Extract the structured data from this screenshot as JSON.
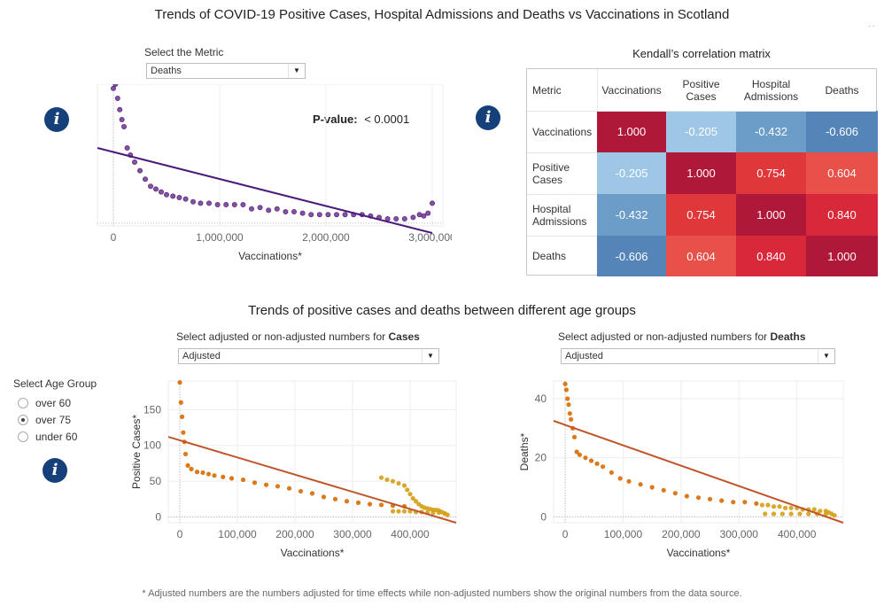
{
  "page": {
    "title": "Trends of COVID-19 Positive Cases, Hospital Admissions and Deaths  vs Vaccinations in Scotland",
    "more_icon": "more-options-icon",
    "footnote": "* Adjusted numbers are the numbers adjusted for time effects while non-adjusted numbers show the original numbers from the data source."
  },
  "metric_control": {
    "label": "Select the Metric",
    "selected": "Deaths",
    "options": [
      "Deaths"
    ]
  },
  "pvalue": {
    "label": "P-value:",
    "value": "< 0.0001"
  },
  "correlation": {
    "title": "Kendall’s correlation matrix",
    "corner": "Metric",
    "headers": [
      "Vaccinations",
      "Positive\nCases",
      "Hospital\nAdmissions",
      "Deaths"
    ],
    "rows": [
      {
        "label": "Vaccinations",
        "values": [
          "1.000",
          "-0.205",
          "-0.432",
          "-0.606"
        ]
      },
      {
        "label": "Positive\nCases",
        "values": [
          "-0.205",
          "1.000",
          "0.754",
          "0.604"
        ]
      },
      {
        "label": "Hospital\nAdmissions",
        "values": [
          "-0.432",
          "0.754",
          "1.000",
          "0.840"
        ]
      },
      {
        "label": "Deaths",
        "values": [
          "-0.606",
          "0.604",
          "0.840",
          "1.000"
        ]
      }
    ],
    "colors": {
      "1.000": "#b0183a",
      "-0.205": "#9ec7e6",
      "-0.432": "#6c9cc8",
      "-0.606": "#5585b8",
      "0.754": "#e0373a",
      "0.604": "#e8504a",
      "0.840": "#d8283a"
    }
  },
  "age_section": {
    "title": "Trends of positive cases and deaths between different age groups",
    "cases_label_prefix": "Select adjusted or non-adjusted numbers for ",
    "cases_label_bold": "Cases",
    "cases_selected": "Adjusted",
    "deaths_label_prefix": "Select adjusted or non-adjusted numbers for ",
    "deaths_label_bold": "Deaths",
    "deaths_selected": "Adjusted",
    "age_group_label": "Select Age Group",
    "age_groups": [
      "over 60",
      "over 75",
      "under 60"
    ],
    "age_selected": "over 75"
  },
  "info_icon": "info-icon",
  "chart_data": [
    {
      "type": "scatter",
      "title": "",
      "xlabel": "Vaccinations*",
      "ylabel": "",
      "xlim": [
        -150000,
        3100000
      ],
      "ylim": [
        0,
        1
      ],
      "x_ticks": [
        "0",
        "1,000,000",
        "2,000,000",
        "3,000,000"
      ],
      "x_tick_values": [
        0,
        1000000,
        2000000,
        3000000
      ],
      "y_ticks": [],
      "point_color": "#7b3f98",
      "trend_color": "#4b1a7a",
      "trend": {
        "x": [
          -150000,
          3000000
        ],
        "y": [
          0.55,
          -0.05
        ]
      },
      "series": [
        {
          "x": [
            0,
            20000,
            40000,
            60000,
            80000,
            100000,
            130000,
            160000,
            200000,
            250000,
            300000,
            350000,
            400000,
            450000,
            500000,
            560000,
            620000,
            680000,
            750000,
            820000,
            900000,
            980000,
            1060000,
            1140000,
            1220000,
            1300000,
            1380000,
            1460000,
            1540000,
            1620000,
            1700000,
            1780000,
            1860000,
            1940000,
            2020000,
            2100000,
            2180000,
            2260000,
            2340000,
            2420000,
            2500000,
            2580000,
            2660000,
            2740000,
            2820000,
            2880000,
            2920000,
            2960000,
            3000000
          ],
          "y": [
            0.97,
            1.0,
            0.9,
            0.82,
            0.75,
            0.7,
            0.55,
            0.5,
            0.45,
            0.39,
            0.33,
            0.28,
            0.26,
            0.24,
            0.22,
            0.21,
            0.2,
            0.19,
            0.17,
            0.16,
            0.16,
            0.15,
            0.15,
            0.15,
            0.15,
            0.12,
            0.13,
            0.11,
            0.12,
            0.1,
            0.1,
            0.09,
            0.08,
            0.08,
            0.08,
            0.08,
            0.08,
            0.08,
            0.08,
            0.07,
            0.06,
            0.05,
            0.05,
            0.05,
            0.06,
            0.08,
            0.07,
            0.09,
            0.16
          ]
        }
      ]
    },
    {
      "type": "scatter",
      "title": "",
      "xlabel": "Vaccinations*",
      "ylabel": "Positive Cases*",
      "xlim": [
        -20000,
        480000
      ],
      "ylim": [
        -8,
        190
      ],
      "x_ticks": [
        "0",
        "100,000",
        "200,000",
        "300,000",
        "400,000"
      ],
      "x_tick_values": [
        0,
        100000,
        200000,
        300000,
        400000
      ],
      "y_ticks": [
        "0",
        "50",
        "100",
        "150"
      ],
      "y_tick_values": [
        0,
        50,
        100,
        150
      ],
      "point_colors": [
        "#d86a00",
        "#d4a017"
      ],
      "trend_color": "#c0552a",
      "trend": {
        "x": [
          -20000,
          480000
        ],
        "y": [
          112,
          -8
        ]
      },
      "series": [
        {
          "x": [
            0,
            2000,
            4000,
            6000,
            8000,
            10000,
            14000,
            20000,
            30000,
            40000,
            50000,
            60000,
            75000,
            90000,
            110000,
            130000,
            150000,
            170000,
            190000,
            210000,
            230000,
            250000,
            270000,
            290000,
            310000,
            330000,
            350000,
            370000,
            390000
          ],
          "y": [
            188,
            160,
            140,
            118,
            105,
            88,
            72,
            67,
            63,
            62,
            60,
            58,
            56,
            54,
            52,
            48,
            45,
            43,
            40,
            36,
            33,
            28,
            25,
            22,
            20,
            18,
            17,
            16,
            15
          ]
        },
        {
          "x": [
            350000,
            360000,
            370000,
            380000,
            390000,
            395000,
            400000,
            405000,
            410000,
            415000,
            420000,
            425000,
            430000,
            435000,
            440000,
            445000,
            450000,
            455000,
            460000,
            465000,
            370000,
            380000,
            390000,
            400000,
            410000,
            420000,
            430000,
            440000,
            450000,
            460000
          ],
          "y": [
            55,
            52,
            50,
            47,
            44,
            38,
            32,
            26,
            22,
            18,
            15,
            13,
            12,
            11,
            10,
            10,
            9,
            7,
            5,
            3,
            8,
            8,
            8,
            8,
            7,
            7,
            6,
            6,
            6,
            5
          ]
        }
      ]
    },
    {
      "type": "scatter",
      "title": "",
      "xlabel": "Vaccinations*",
      "ylabel": "Deaths*",
      "xlim": [
        -20000,
        480000
      ],
      "ylim": [
        -2,
        46
      ],
      "x_ticks": [
        "0",
        "100,000",
        "200,000",
        "300,000",
        "400,000"
      ],
      "x_tick_values": [
        0,
        100000,
        200000,
        300000,
        400000
      ],
      "y_ticks": [
        "0",
        "20",
        "40"
      ],
      "y_tick_values": [
        0,
        20,
        40
      ],
      "point_colors": [
        "#d86a00",
        "#d4a017"
      ],
      "trend_color": "#c0552a",
      "trend": {
        "x": [
          -20000,
          480000
        ],
        "y": [
          32.5,
          -2
        ]
      },
      "series": [
        {
          "x": [
            0,
            2000,
            4000,
            6000,
            8000,
            10000,
            13000,
            16000,
            20000,
            25000,
            35000,
            45000,
            55000,
            65000,
            80000,
            95000,
            110000,
            130000,
            150000,
            170000,
            190000,
            210000,
            230000,
            250000,
            270000,
            290000,
            310000,
            330000
          ],
          "y": [
            45,
            43,
            40,
            38,
            35,
            33,
            30,
            27,
            22,
            21,
            20,
            19,
            18,
            17,
            15,
            13,
            12,
            11,
            10,
            9,
            8,
            7,
            6.5,
            6,
            5.5,
            5,
            5,
            4.5
          ]
        },
        {
          "x": [
            340000,
            350000,
            360000,
            370000,
            380000,
            390000,
            400000,
            410000,
            420000,
            430000,
            440000,
            450000,
            455000,
            460000,
            465000,
            345000,
            360000,
            375000,
            390000,
            405000,
            420000,
            435000,
            450000
          ],
          "y": [
            4,
            4,
            3.5,
            3.5,
            3,
            3,
            3,
            2.5,
            2.5,
            2.5,
            2,
            2,
            1.5,
            1,
            0.5,
            1,
            1,
            1,
            1,
            1,
            1,
            1,
            1
          ]
        }
      ]
    }
  ]
}
